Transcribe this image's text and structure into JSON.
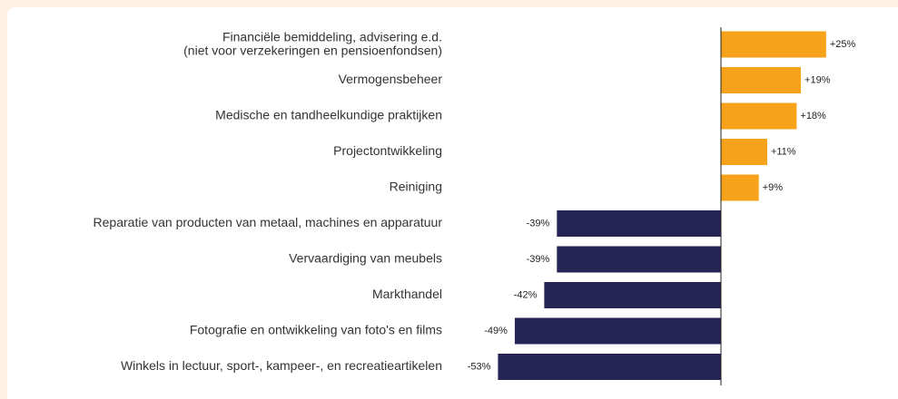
{
  "chart_data": {
    "type": "barh",
    "categories": [
      "Financiële bemiddeling, advisering e.d.\n(niet voor verzekeringen en pensioenfondsen)",
      "Vermogensbeheer",
      "Medische en tandheelkundige praktijken",
      "Projectontwikkeling",
      "Reiniging",
      "Reparatie van producten van metaal, machines en apparatuur",
      "Vervaardiging van meubels",
      "Markthandel",
      "Fotografie en ontwikkeling van foto's en films",
      "Winkels in lectuur, sport-, kampeer-, en recreatieartikelen"
    ],
    "values": [
      25,
      19,
      18,
      11,
      9,
      -39,
      -39,
      -42,
      -49,
      -53
    ],
    "value_labels": [
      "+25%",
      "+19%",
      "+18%",
      "+11%",
      "+9%",
      "-39%",
      "-39%",
      "-42%",
      "-49%",
      "-53%"
    ],
    "colors": [
      "#f7a21b",
      "#f7a21b",
      "#f7a21b",
      "#f7a21b",
      "#f7a21b",
      "#262454",
      "#262454",
      "#262454",
      "#262454",
      "#262454"
    ],
    "xlim": [
      -60,
      30
    ]
  }
}
